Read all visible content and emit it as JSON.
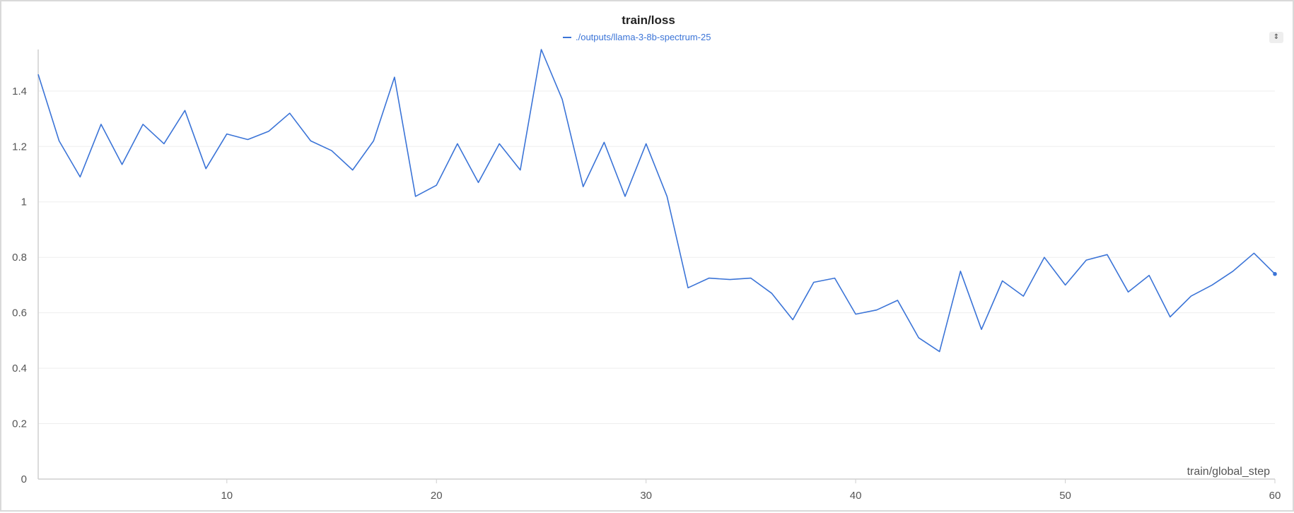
{
  "chart_data": {
    "type": "line",
    "title": "train/loss",
    "xlabel": "train/global_step",
    "ylabel": "",
    "xlim": [
      1,
      60
    ],
    "ylim": [
      0,
      1.55
    ],
    "x_ticks": [
      10,
      20,
      30,
      40,
      50,
      60
    ],
    "y_ticks": [
      0,
      0.2,
      0.4,
      0.6,
      0.8,
      1,
      1.2,
      1.4
    ],
    "x_tick_labels": [
      "10",
      "20",
      "30",
      "40",
      "50",
      "60"
    ],
    "y_tick_labels": [
      "0",
      "0.2",
      "0.4",
      "0.6",
      "0.8",
      "1",
      "1.2",
      "1.4"
    ],
    "grid": "horizontal",
    "legend_position": "top-center",
    "series": [
      {
        "name": "./outputs/llama-3-8b-spectrum-25",
        "color": "#3b74d7",
        "x": [
          1,
          2,
          3,
          4,
          5,
          6,
          7,
          8,
          9,
          10,
          11,
          12,
          13,
          14,
          15,
          16,
          17,
          18,
          19,
          20,
          21,
          22,
          23,
          24,
          25,
          26,
          27,
          28,
          29,
          30,
          31,
          32,
          33,
          34,
          35,
          36,
          37,
          38,
          39,
          40,
          41,
          42,
          43,
          44,
          45,
          46,
          47,
          48,
          49,
          50,
          51,
          52,
          53,
          54,
          55,
          56,
          57,
          58,
          59,
          60
        ],
        "y": [
          1.46,
          1.22,
          1.09,
          1.28,
          1.135,
          1.28,
          1.21,
          1.33,
          1.12,
          1.245,
          1.225,
          1.255,
          1.32,
          1.22,
          1.185,
          1.115,
          1.22,
          1.45,
          1.02,
          1.06,
          1.21,
          1.07,
          1.21,
          1.115,
          1.55,
          1.37,
          1.055,
          1.215,
          1.02,
          1.21,
          1.02,
          0.69,
          0.725,
          0.72,
          0.725,
          0.67,
          0.575,
          0.71,
          0.725,
          0.595,
          0.61,
          0.645,
          0.51,
          0.46,
          0.75,
          0.54,
          0.715,
          0.66,
          0.8,
          0.7,
          0.79,
          0.81,
          0.675,
          0.735,
          0.585,
          0.66,
          0.7,
          0.75,
          0.815,
          0.74
        ]
      }
    ]
  },
  "legend": {
    "label": "./outputs/llama-3-8b-spectrum-25"
  },
  "controls": {
    "sort_icon": "sort-toggle-icon",
    "sort_glyph": "⇕"
  },
  "colors": {
    "line": "#3b74d7",
    "grid": "#eeeeee",
    "axis": "#cfcfcf"
  }
}
